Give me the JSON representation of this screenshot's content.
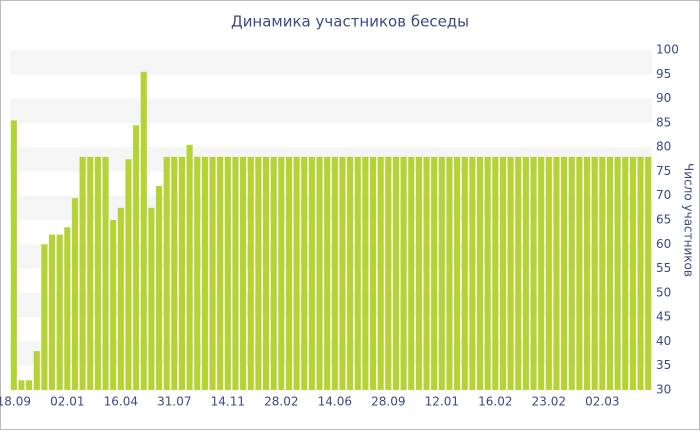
{
  "chart_data": {
    "type": "bar",
    "title": "Динамика участников беседы",
    "y_label": "Число участников",
    "categories": [
      "18.09",
      null,
      null,
      null,
      null,
      null,
      null,
      "02.01",
      null,
      null,
      null,
      null,
      null,
      null,
      "16.04",
      null,
      null,
      null,
      null,
      null,
      null,
      "31.07",
      null,
      null,
      null,
      null,
      null,
      null,
      "14.11",
      null,
      null,
      null,
      null,
      null,
      null,
      "28.02",
      null,
      null,
      null,
      null,
      null,
      null,
      "14.06",
      null,
      null,
      null,
      null,
      null,
      null,
      "28.09",
      null,
      null,
      null,
      null,
      null,
      null,
      "12.01",
      null,
      null,
      null,
      null,
      null,
      null,
      "16.02",
      null,
      null,
      null,
      null,
      null,
      null,
      "23.02",
      null,
      null,
      null,
      null,
      null,
      null,
      "02.03",
      null,
      null,
      null,
      null,
      null,
      null
    ],
    "values": [
      85.5,
      32,
      32,
      38,
      60,
      62,
      62,
      63.5,
      69.5,
      78,
      78,
      78,
      78,
      65,
      67.5,
      77.5,
      84.5,
      95.5,
      67.5,
      72,
      78,
      78,
      78,
      80.5,
      78,
      78,
      78,
      78,
      78,
      78,
      78,
      78,
      78,
      78,
      78,
      78,
      78,
      78,
      78,
      78,
      78,
      78,
      78,
      78,
      78,
      78,
      78,
      78,
      78,
      78,
      78,
      78,
      78,
      78,
      78,
      78,
      78,
      78,
      78,
      78,
      78,
      78,
      78,
      78,
      78,
      78,
      78,
      78,
      78,
      78,
      78,
      78,
      78,
      78,
      78,
      78,
      78,
      78,
      78,
      78,
      78,
      78,
      78,
      78
    ],
    "color": "#b5d334",
    "ylim": [
      30,
      100
    ],
    "yticks": [
      30,
      35,
      40,
      45,
      50,
      55,
      60,
      65,
      70,
      75,
      80,
      85,
      90,
      95,
      100
    ],
    "grid": true,
    "y_axis_side": "right"
  }
}
